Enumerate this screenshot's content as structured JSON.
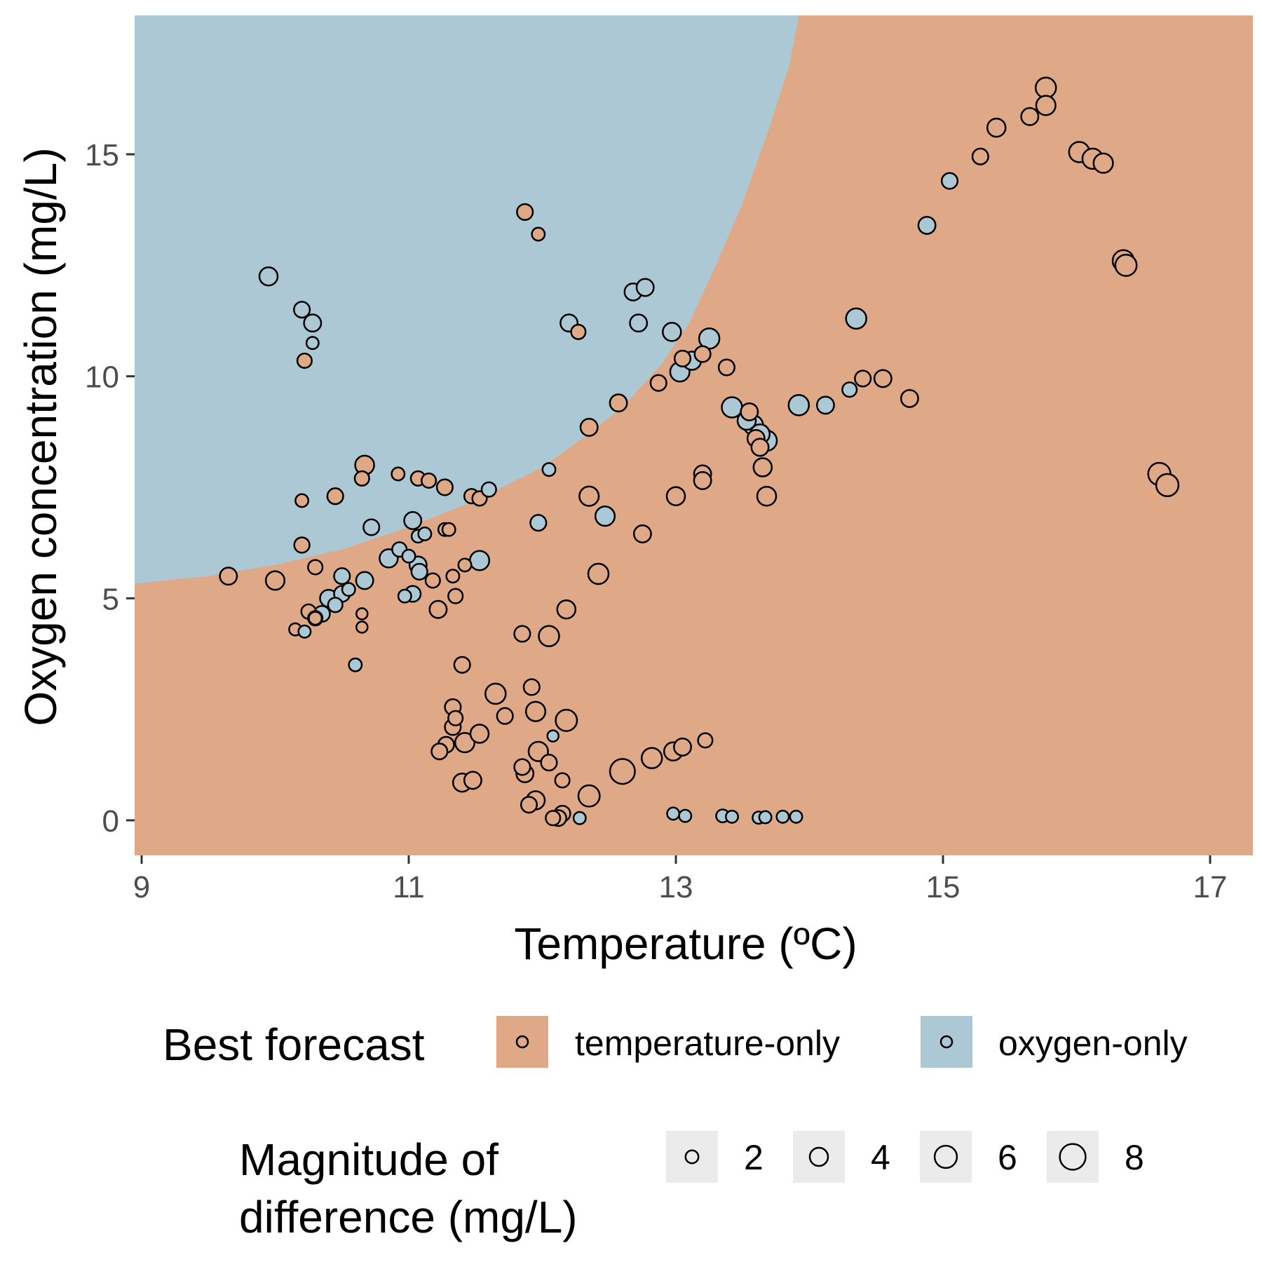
{
  "colors": {
    "temperature_only": "#DFA886",
    "oxygen_only": "#ABC8D4",
    "tick_text": "#4d4d4d",
    "legend_key_bg": "#EBEBEB"
  },
  "chart_data": {
    "type": "scatter",
    "xlabel": "Temperature (ºC)",
    "ylabel": "Oxygen concentration (mg/L)",
    "xlim": [
      8.95,
      17.4
    ],
    "ylim": [
      -0.75,
      18.2
    ],
    "x_ticks": [
      9,
      11,
      13,
      15,
      17
    ],
    "y_ticks": [
      0,
      5,
      10,
      15
    ],
    "x_tick_labels": [
      "9",
      "11",
      "13",
      "15",
      "17"
    ],
    "y_tick_labels": [
      "0",
      "5",
      "10",
      "15"
    ],
    "grid": false,
    "background": "decision regions: oxygen-only in upper-left, temperature-only elsewhere",
    "legend_position": "bottom",
    "color_legend": {
      "title": "Best forecast",
      "entries": [
        {
          "label": "temperature-only",
          "color": "#DFA886"
        },
        {
          "label": "oxygen-only",
          "color": "#ABC8D4"
        }
      ]
    },
    "size_legend": {
      "title_line1": "Magnitude of",
      "title_line2": "difference (mg/L)",
      "entries": [
        {
          "label": "2",
          "value": 2
        },
        {
          "label": "4",
          "value": 4
        },
        {
          "label": "6",
          "value": 6
        },
        {
          "label": "8",
          "value": 8
        }
      ]
    },
    "series": [
      {
        "name": "temperature-only",
        "color": "#DFA886",
        "points": [
          [
            9.65,
            5.5,
            3.5
          ],
          [
            10.0,
            5.4,
            4.2
          ],
          [
            10.2,
            7.2,
            2.0
          ],
          [
            10.2,
            6.2,
            2.8
          ],
          [
            10.22,
            10.35,
            2.5
          ],
          [
            10.25,
            4.7,
            2.5
          ],
          [
            10.3,
            5.7,
            2.5
          ],
          [
            10.3,
            4.55,
            2.0
          ],
          [
            10.15,
            4.3,
            1.8
          ],
          [
            10.45,
            7.3,
            3.0
          ],
          [
            10.65,
            7.7,
            2.5
          ],
          [
            10.67,
            8.0,
            4.3
          ],
          [
            10.92,
            7.8,
            2.0
          ],
          [
            11.07,
            7.7,
            2.5
          ],
          [
            11.15,
            7.65,
            2.5
          ],
          [
            11.27,
            7.5,
            3.0
          ],
          [
            11.47,
            7.3,
            2.5
          ],
          [
            11.53,
            7.25,
            2.5
          ],
          [
            11.27,
            6.55,
            2.0
          ],
          [
            11.3,
            6.55,
            2.0
          ],
          [
            11.18,
            5.4,
            2.5
          ],
          [
            11.33,
            5.5,
            2.0
          ],
          [
            11.42,
            5.75,
            2.0
          ],
          [
            11.35,
            5.05,
            2.5
          ],
          [
            11.22,
            4.75,
            3.5
          ],
          [
            11.4,
            3.5,
            3.0
          ],
          [
            11.33,
            2.55,
            3.0
          ],
          [
            11.35,
            2.3,
            2.5
          ],
          [
            11.33,
            2.1,
            3.0
          ],
          [
            11.28,
            1.7,
            3.0
          ],
          [
            11.23,
            1.55,
            3.0
          ],
          [
            11.42,
            1.75,
            4.5
          ],
          [
            11.53,
            1.95,
            4.0
          ],
          [
            11.4,
            0.85,
            4.0
          ],
          [
            11.48,
            0.9,
            3.5
          ],
          [
            11.65,
            2.85,
            5.0
          ],
          [
            11.72,
            2.35,
            3.0
          ],
          [
            11.92,
            3.0,
            3.0
          ],
          [
            11.85,
            4.2,
            3.0
          ],
          [
            11.95,
            2.45,
            4.5
          ],
          [
            11.97,
            1.55,
            4.5
          ],
          [
            11.85,
            1.2,
            3.0
          ],
          [
            11.87,
            1.05,
            3.5
          ],
          [
            12.05,
            1.3,
            3.0
          ],
          [
            11.9,
            0.35,
            3.0
          ],
          [
            11.95,
            0.45,
            4.0
          ],
          [
            12.15,
            0.9,
            2.5
          ],
          [
            12.05,
            4.15,
            5.0
          ],
          [
            12.18,
            2.25,
            5.5
          ],
          [
            12.18,
            4.75,
            4.0
          ],
          [
            12.15,
            0.15,
            3.0
          ],
          [
            12.12,
            0.05,
            3.0
          ],
          [
            12.08,
            0.05,
            2.5
          ],
          [
            12.35,
            0.55,
            5.5
          ],
          [
            12.35,
            7.3,
            4.5
          ],
          [
            12.42,
            5.55,
            5.0
          ],
          [
            12.35,
            8.85,
            3.5
          ],
          [
            12.57,
            9.4,
            3.5
          ],
          [
            12.6,
            1.1,
            7.5
          ],
          [
            12.75,
            6.45,
            3.5
          ],
          [
            12.82,
            1.4,
            5.0
          ],
          [
            12.87,
            9.85,
            3.0
          ],
          [
            12.98,
            1.55,
            4.0
          ],
          [
            13.05,
            1.65,
            3.5
          ],
          [
            13.0,
            7.3,
            4.0
          ],
          [
            13.05,
            10.4,
            3.0
          ],
          [
            13.2,
            10.5,
            3.0
          ],
          [
            13.22,
            1.8,
            2.5
          ],
          [
            13.2,
            7.8,
            3.5
          ],
          [
            13.2,
            7.65,
            3.5
          ],
          [
            13.38,
            10.2,
            3.0
          ],
          [
            13.55,
            9.2,
            3.5
          ],
          [
            13.6,
            8.6,
            3.5
          ],
          [
            13.63,
            8.4,
            3.5
          ],
          [
            13.65,
            7.95,
            4.0
          ],
          [
            13.68,
            7.3,
            4.3
          ],
          [
            11.87,
            13.7,
            3.0
          ],
          [
            11.97,
            13.2,
            2.0
          ],
          [
            12.27,
            11.0,
            2.5
          ],
          [
            14.4,
            9.95,
            3.0
          ],
          [
            14.55,
            9.95,
            3.5
          ],
          [
            14.75,
            9.5,
            3.5
          ],
          [
            15.28,
            14.95,
            3.0
          ],
          [
            15.4,
            15.6,
            4.0
          ],
          [
            15.65,
            15.85,
            3.5
          ],
          [
            15.77,
            16.1,
            4.5
          ],
          [
            15.77,
            16.5,
            5.0
          ],
          [
            16.02,
            15.05,
            5.0
          ],
          [
            16.12,
            14.9,
            5.0
          ],
          [
            16.2,
            14.8,
            4.5
          ],
          [
            16.35,
            12.6,
            5.5
          ],
          [
            16.37,
            12.5,
            5.5
          ],
          [
            16.62,
            7.8,
            6.0
          ],
          [
            16.68,
            7.55,
            6.0
          ],
          [
            10.65,
            4.35,
            1.5
          ],
          [
            10.65,
            4.65,
            1.5
          ]
        ]
      },
      {
        "name": "oxygen-only",
        "color": "#ABC8D4",
        "points": [
          [
            9.95,
            12.25,
            4.0
          ],
          [
            10.2,
            11.5,
            3.0
          ],
          [
            10.28,
            11.2,
            3.5
          ],
          [
            10.28,
            10.75,
            1.8
          ],
          [
            10.22,
            4.25,
            1.8
          ],
          [
            10.3,
            4.55,
            2.5
          ],
          [
            10.35,
            4.65,
            3.0
          ],
          [
            10.4,
            5.0,
            3.5
          ],
          [
            10.45,
            4.85,
            2.5
          ],
          [
            10.5,
            5.1,
            3.0
          ],
          [
            10.5,
            5.5,
            3.0
          ],
          [
            10.55,
            5.2,
            2.0
          ],
          [
            10.6,
            3.5,
            2.0
          ],
          [
            10.67,
            5.4,
            3.5
          ],
          [
            10.72,
            6.6,
            3.0
          ],
          [
            10.85,
            5.9,
            4.0
          ],
          [
            10.93,
            6.1,
            2.5
          ],
          [
            10.97,
            5.05,
            2.0
          ],
          [
            11.0,
            5.95,
            2.0
          ],
          [
            11.03,
            5.1,
            3.0
          ],
          [
            11.03,
            6.75,
            3.5
          ],
          [
            11.07,
            6.4,
            2.0
          ],
          [
            11.12,
            6.45,
            2.0
          ],
          [
            11.07,
            5.75,
            3.5
          ],
          [
            11.08,
            5.6,
            3.0
          ],
          [
            11.6,
            7.45,
            2.5
          ],
          [
            11.53,
            5.85,
            4.5
          ],
          [
            11.97,
            6.7,
            3.0
          ],
          [
            12.05,
            7.9,
            2.0
          ],
          [
            12.08,
            1.9,
            1.5
          ],
          [
            12.28,
            0.05,
            1.8
          ],
          [
            12.2,
            11.2,
            3.5
          ],
          [
            12.47,
            6.85,
            4.5
          ],
          [
            12.68,
            11.9,
            3.5
          ],
          [
            12.77,
            12.0,
            3.5
          ],
          [
            12.72,
            11.2,
            3.5
          ],
          [
            12.97,
            11.0,
            4.0
          ],
          [
            13.03,
            10.1,
            4.5
          ],
          [
            13.12,
            10.35,
            4.0
          ],
          [
            13.25,
            10.85,
            5.0
          ],
          [
            12.98,
            0.15,
            1.8
          ],
          [
            13.07,
            0.1,
            1.8
          ],
          [
            13.35,
            0.1,
            2.0
          ],
          [
            13.42,
            0.08,
            1.8
          ],
          [
            13.62,
            0.06,
            1.8
          ],
          [
            13.67,
            0.07,
            1.8
          ],
          [
            13.8,
            0.08,
            1.8
          ],
          [
            13.9,
            0.08,
            1.8
          ],
          [
            13.42,
            9.3,
            5.0
          ],
          [
            13.53,
            9.0,
            4.0
          ],
          [
            13.58,
            8.9,
            4.5
          ],
          [
            13.63,
            8.7,
            4.5
          ],
          [
            13.68,
            8.55,
            5.0
          ],
          [
            13.92,
            9.35,
            5.0
          ],
          [
            14.12,
            9.35,
            3.5
          ],
          [
            14.3,
            9.7,
            2.5
          ],
          [
            14.35,
            11.3,
            5.0
          ],
          [
            14.88,
            13.4,
            3.5
          ],
          [
            15.05,
            14.4,
            3.0
          ]
        ]
      }
    ]
  }
}
